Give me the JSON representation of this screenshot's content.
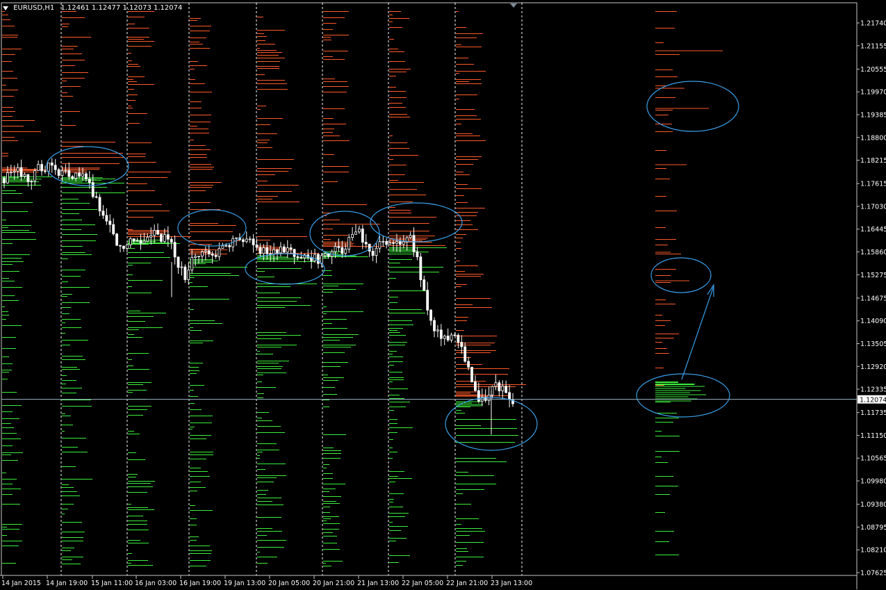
{
  "window": {
    "symbol_timeframe": "EURUSD,H1",
    "ohlc_values": "1.12461 1.12477 1.12073 1.12074"
  },
  "colors": {
    "background": "#000000",
    "candle": "#ffffff",
    "grid_separator": "#ffffff",
    "sell_levels": "#ff5a2a",
    "buy_levels": "#3cf03c",
    "annotation": "#3a9fe8",
    "price_line": "#9bb5c8",
    "axis_text": "#ffffff"
  },
  "chart_data": {
    "type": "candlestick",
    "symbol": "EURUSD",
    "timeframe": "H1",
    "current_price": "1.12074",
    "y_ticks": [
      "1.21740",
      "1.21155",
      "1.20555",
      "1.19970",
      "1.19385",
      "1.18800",
      "1.18215",
      "1.17615",
      "1.17030",
      "1.16445",
      "1.15860",
      "1.15275",
      "1.14675",
      "1.14090",
      "1.13505",
      "1.12920",
      "1.12335",
      "1.11735",
      "1.11150",
      "1.10565",
      "1.09980",
      "1.09380",
      "1.08795",
      "1.08210",
      "1.07625"
    ],
    "x_ticks": [
      "14 Jan 2015",
      "14 Jan 19:00",
      "15 Jan 11:00",
      "16 Jan 03:00",
      "16 Jan 19:00",
      "19 Jan 13:00",
      "20 Jan 05:00",
      "20 Jan 21:00",
      "21 Jan 13:00",
      "22 Jan 05:00",
      "22 Jan 21:00",
      "23 Jan 13:00"
    ],
    "close_path": [
      [
        0,
        1.1775
      ],
      [
        0.02,
        1.179
      ],
      [
        0.04,
        1.1815
      ],
      [
        0.06,
        1.178
      ],
      [
        0.08,
        1.176
      ],
      [
        0.1,
        1.182
      ],
      [
        0.12,
        1.179
      ],
      [
        0.14,
        1.1805
      ],
      [
        0.16,
        1.1795
      ],
      [
        0.18,
        1.179
      ],
      [
        0.2,
        1.1785
      ],
      [
        0.22,
        1.1788
      ],
      [
        0.24,
        1.178
      ],
      [
        0.26,
        1.177
      ],
      [
        0.28,
        1.173
      ],
      [
        0.3,
        1.169
      ],
      [
        0.32,
        1.167
      ],
      [
        0.34,
        1.164
      ],
      [
        0.36,
        1.159
      ],
      [
        0.38,
        1.16
      ],
      [
        0.4,
        1.162
      ],
      [
        0.42,
        1.1615
      ],
      [
        0.44,
        1.163
      ],
      [
        0.46,
        1.164
      ],
      [
        0.48,
        1.1625
      ],
      [
        0.5,
        1.162
      ],
      [
        0.52,
        1.16
      ],
      [
        0.54,
        1.156
      ],
      [
        0.56,
        1.152
      ],
      [
        0.58,
        1.156
      ],
      [
        0.6,
        1.158
      ],
      [
        0.62,
        1.1575
      ],
      [
        0.64,
        1.158
      ],
      [
        0.66,
        1.1585
      ],
      [
        0.68,
        1.16
      ],
      [
        0.7,
        1.161
      ],
      [
        0.72,
        1.162
      ],
      [
        0.74,
        1.1615
      ],
      [
        0.76,
        1.161
      ],
      [
        0.78,
        1.16
      ],
      [
        0.8,
        1.159
      ],
      [
        0.82,
        1.1585
      ],
      [
        0.84,
        1.1592
      ],
      [
        0.86,
        1.16
      ],
      [
        0.88,
        1.1595
      ],
      [
        0.9,
        1.157
      ],
      [
        0.92,
        1.156
      ],
      [
        0.94,
        1.157
      ],
      [
        0.96,
        1.1575
      ],
      [
        0.98,
        1.1565
      ],
      [
        1.0,
        1.158
      ],
      [
        1.02,
        1.159
      ],
      [
        1.04,
        1.1585
      ],
      [
        1.06,
        1.16
      ],
      [
        1.08,
        1.162
      ],
      [
        1.1,
        1.164
      ],
      [
        1.12,
        1.16
      ],
      [
        1.14,
        1.1585
      ],
      [
        1.16,
        1.16
      ],
      [
        1.18,
        1.1615
      ],
      [
        1.2,
        1.1605
      ],
      [
        1.22,
        1.16
      ],
      [
        1.24,
        1.162
      ],
      [
        1.26,
        1.163
      ],
      [
        1.28,
        1.158
      ],
      [
        1.3,
        1.15
      ],
      [
        1.32,
        1.142
      ],
      [
        1.34,
        1.138
      ],
      [
        1.36,
        1.137
      ],
      [
        1.38,
        1.1365
      ],
      [
        1.4,
        1.136
      ],
      [
        1.42,
        1.134
      ],
      [
        1.44,
        1.13
      ],
      [
        1.46,
        1.124
      ],
      [
        1.48,
        1.12
      ],
      [
        1.5,
        1.122
      ],
      [
        1.52,
        1.125
      ],
      [
        1.54,
        1.124
      ],
      [
        1.56,
        1.1225
      ],
      [
        1.58,
        1.1207
      ]
    ],
    "grid": "vertical session separators"
  }
}
